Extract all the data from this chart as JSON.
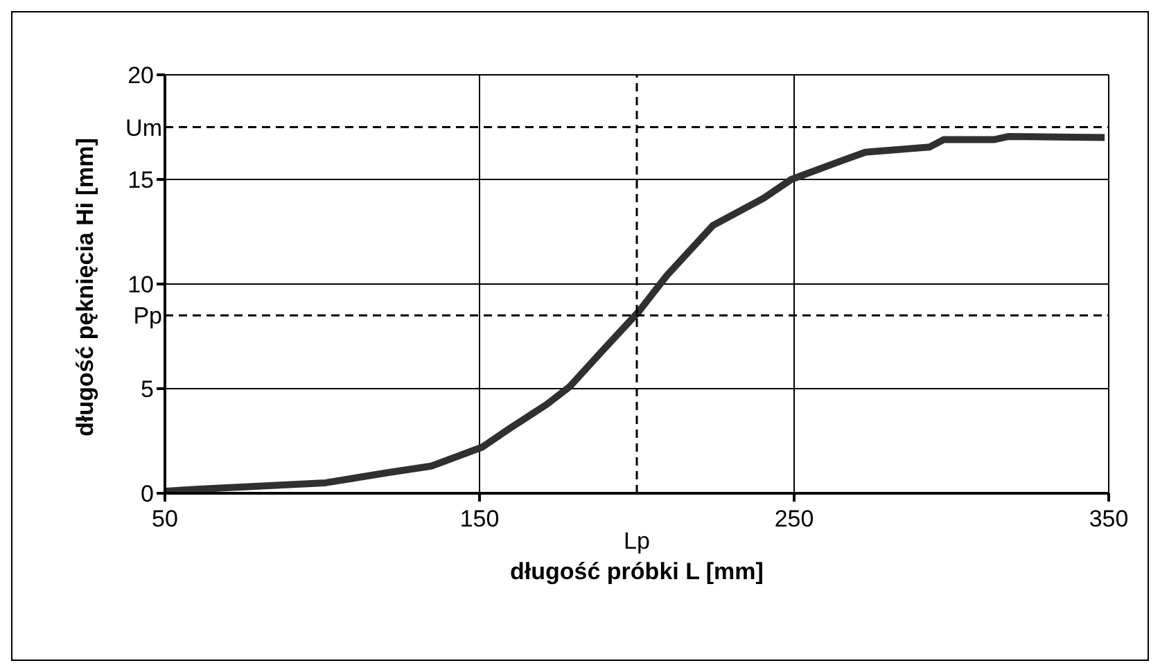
{
  "chart_data": {
    "type": "line",
    "xlabel": "długość próbki L [mm]",
    "ylabel": "długość pęknięcia Hi [mm]",
    "series": [
      {
        "color": "#303030",
        "x": [
          50,
          61,
          101,
          121.5,
          134.7,
          150.8,
          159.6,
          171.4,
          178.7,
          189,
          200.7,
          209.5,
          224.2,
          240.3,
          249.1,
          265.2,
          272.6,
          293.1,
          297.5,
          313.5,
          318,
          348.7
        ],
        "values": [
          0.1,
          0.2,
          0.5,
          1.0,
          1.3,
          2.2,
          3.1,
          4.25,
          5.1,
          6.8,
          8.7,
          10.4,
          12.8,
          14.1,
          15.0,
          15.9,
          16.3,
          16.55,
          16.9,
          16.9,
          17.05,
          17.0
        ]
      }
    ],
    "xlim": [
      50,
      350
    ],
    "xticks": [
      50,
      150,
      250,
      350
    ],
    "ylim": [
      0,
      20
    ],
    "yticks": [
      0,
      5,
      10,
      15,
      20
    ],
    "grid": true,
    "marker": "none",
    "line_style": "solid",
    "ref_lines": [
      {
        "axis": "x",
        "value": 200,
        "label": "Lp",
        "line_style": "dashed",
        "color": "#000000"
      },
      {
        "axis": "y",
        "value": 8.5,
        "label": "Pp",
        "line_style": "dashed",
        "color": "#000000"
      },
      {
        "axis": "y",
        "value": 17.5,
        "label": "Um",
        "line_style": "dashed",
        "color": "#000000"
      }
    ]
  }
}
